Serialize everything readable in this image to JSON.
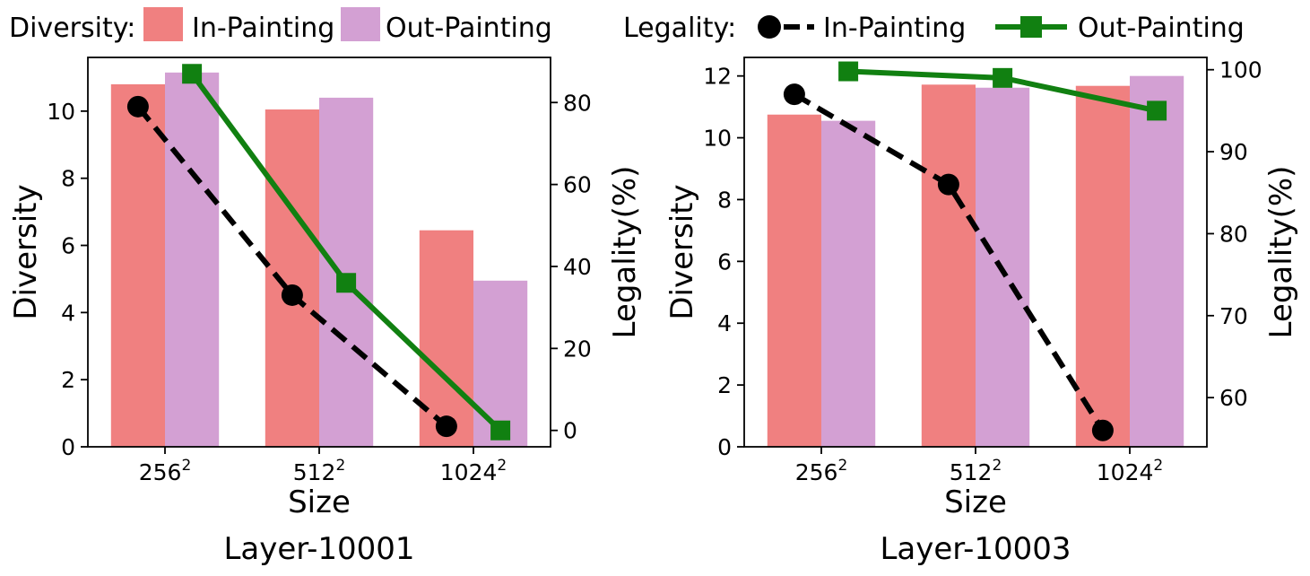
{
  "legend": {
    "diversity_label": "Diversity:",
    "legality_label": "Legality:",
    "in_painting": "In-Painting",
    "out_painting": "Out-Painting"
  },
  "colors": {
    "diversity_in": "#f08080",
    "diversity_out": "#d3a0d3",
    "legality_in": "#000000",
    "legality_out": "#118011"
  },
  "chart_data": [
    {
      "type": "bar",
      "title": "Layer-10001",
      "xlabel": "Size",
      "ylabel_left": "Diversity",
      "ylabel_right": "Legality(%)",
      "categories": [
        "256",
        "512",
        "1024"
      ],
      "category_superscript": "2",
      "ylim_left": [
        0,
        11.6
      ],
      "ylim_right": [
        -4,
        91
      ],
      "yticks_left": [
        0,
        2,
        4,
        6,
        8,
        10
      ],
      "yticks_right": [
        0,
        20,
        40,
        60,
        80
      ],
      "bar_series": [
        {
          "name": "Diversity In-Painting",
          "values": [
            10.8,
            10.05,
            6.45
          ]
        },
        {
          "name": "Diversity Out-Painting",
          "values": [
            11.15,
            10.4,
            4.95
          ]
        }
      ],
      "line_series": [
        {
          "name": "Legality In-Painting",
          "values": [
            79,
            33,
            1
          ],
          "marker": "circle",
          "style": "dashed"
        },
        {
          "name": "Legality Out-Painting",
          "values": [
            87,
            36,
            0
          ],
          "marker": "square",
          "style": "solid"
        }
      ]
    },
    {
      "type": "bar",
      "title": "Layer-10003",
      "xlabel": "Size",
      "ylabel_left": "Diversity",
      "ylabel_right": "Legality(%)",
      "categories": [
        "256",
        "512",
        "1024"
      ],
      "category_superscript": "2",
      "ylim_left": [
        0,
        12.6
      ],
      "ylim_right": [
        54,
        101.5
      ],
      "yticks_left": [
        0,
        2,
        4,
        6,
        8,
        10,
        12
      ],
      "yticks_right": [
        60,
        70,
        80,
        90,
        100
      ],
      "bar_series": [
        {
          "name": "Diversity In-Painting",
          "values": [
            10.75,
            11.72,
            11.68
          ]
        },
        {
          "name": "Diversity Out-Painting",
          "values": [
            10.55,
            11.62,
            12.0
          ]
        }
      ],
      "line_series": [
        {
          "name": "Legality In-Painting",
          "values": [
            97,
            86,
            56
          ],
          "marker": "circle",
          "style": "dashed"
        },
        {
          "name": "Legality Out-Painting",
          "values": [
            99.8,
            99,
            95
          ],
          "marker": "square",
          "style": "solid"
        }
      ]
    }
  ]
}
